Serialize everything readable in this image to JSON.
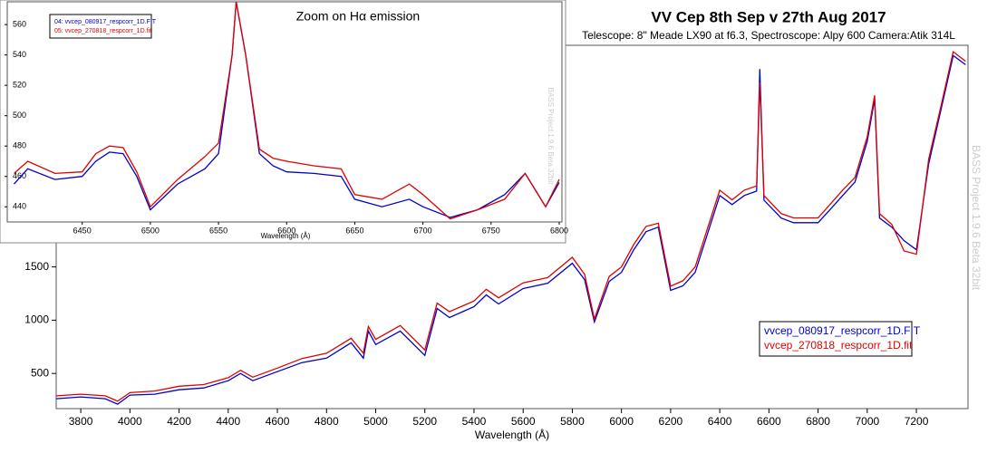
{
  "chart_data": [
    {
      "type": "line",
      "title": "VV Cep 8th Sep v 27th Aug 2017",
      "subtitle": "Telescope: 8\" Meade LX90 at f6.3, Spectroscope: Alpy 600 Camera:Atik 314L",
      "x_label": "Wavelength (Å)",
      "annotation": "BASS Project 1.9.6 Beta 32bit",
      "legend": "bottom-right",
      "x": [
        3700,
        3800,
        3900,
        3950,
        4000,
        4100,
        4200,
        4300,
        4400,
        4450,
        4500,
        4600,
        4700,
        4800,
        4900,
        4950,
        4970,
        5000,
        5100,
        5200,
        5250,
        5300,
        5400,
        5450,
        5500,
        5600,
        5700,
        5800,
        5850,
        5890,
        5950,
        6000,
        6050,
        6100,
        6150,
        6200,
        6250,
        6300,
        6400,
        6450,
        6500,
        6550,
        6563,
        6580,
        6650,
        6700,
        6800,
        6850,
        6900,
        6950,
        7000,
        7030,
        7050,
        7100,
        7150,
        7200,
        7250,
        7300,
        7350,
        7400
      ],
      "series": [
        {
          "name": "vvcep_080917_respcorr_1D.FIT",
          "color": "#0000cc",
          "values": [
            263,
            280,
            263,
            212,
            297,
            305,
            347,
            364,
            432,
            500,
            432,
            517,
            602,
            644,
            788,
            644,
            898,
            771,
            898,
            669,
            1110,
            1025,
            1127,
            1237,
            1152,
            1297,
            1347,
            1534,
            1381,
            983,
            1364,
            1449,
            1661,
            1831,
            1873,
            1280,
            1322,
            1449,
            2170,
            2085,
            2170,
            2212,
            3356,
            2127,
            1958,
            1915,
            1915,
            2042,
            2170,
            2297,
            2678,
            3076,
            1958,
            1873,
            1746,
            1661,
            2466,
            2975,
            3483,
            3398
          ]
        },
        {
          "name": "vvcep_270818_respcorr_1D.fit",
          "color": "#e00000",
          "values": [
            290,
            305,
            290,
            240,
            320,
            335,
            380,
            395,
            460,
            530,
            465,
            550,
            640,
            690,
            830,
            690,
            940,
            820,
            950,
            720,
            1160,
            1080,
            1180,
            1290,
            1210,
            1350,
            1400,
            1590,
            1430,
            1010,
            1410,
            1500,
            1710,
            1880,
            1910,
            1320,
            1370,
            1500,
            2220,
            2130,
            2220,
            2260,
            3229,
            2170,
            2000,
            1960,
            1960,
            2090,
            2220,
            2340,
            2720,
            3110,
            2000,
            1900,
            1650,
            1619,
            2510,
            3010,
            3520,
            3430
          ]
        }
      ],
      "xlim": [
        3700,
        7410
      ],
      "ylim": [
        170,
        3580
      ],
      "xticks": [
        3800,
        4000,
        4200,
        4400,
        4600,
        4800,
        5000,
        5200,
        5400,
        5600,
        5800,
        6000,
        6200,
        6400,
        6600,
        6800,
        7000,
        7200
      ],
      "yticks": [
        500,
        1000,
        1500
      ]
    },
    {
      "type": "line",
      "title": "Zoom on Hα emission",
      "x_label": "Wavelength (Å)",
      "annotation": "BASS Project 1.9.6 Beta 32bit",
      "legend": "top-left",
      "x": [
        6400,
        6410,
        6430,
        6450,
        6460,
        6470,
        6480,
        6490,
        6500,
        6520,
        6540,
        6550,
        6560,
        6563,
        6570,
        6580,
        6590,
        6600,
        6620,
        6640,
        6650,
        6670,
        6690,
        6700,
        6720,
        6740,
        6760,
        6775,
        6790,
        6800
      ],
      "series": [
        {
          "name": "04: vvcep_080917_respcorr_1D.FIT",
          "color": "#0000cc",
          "values": [
            455,
            465,
            458,
            460,
            470,
            476,
            475,
            460,
            438,
            455,
            465,
            475,
            540,
            575,
            540,
            475,
            467,
            463,
            462,
            460,
            445,
            440,
            445,
            440,
            433,
            438,
            448,
            462,
            440,
            456
          ]
        },
        {
          "name": "05: vvcep_270818_respcorr_1D.fit",
          "color": "#e00000",
          "values": [
            462,
            470,
            462,
            463,
            475,
            480,
            479,
            463,
            440,
            458,
            473,
            482,
            540,
            575,
            540,
            478,
            472,
            470,
            467,
            465,
            448,
            445,
            455,
            448,
            432,
            438,
            445,
            462,
            440,
            458
          ]
        }
      ],
      "xlim": [
        6395,
        6802
      ],
      "ylim": [
        430,
        575
      ],
      "xticks": [
        6450,
        6500,
        6550,
        6600,
        6650,
        6700,
        6750,
        6800
      ],
      "yticks": [
        440,
        460,
        480,
        500,
        520,
        540,
        560
      ]
    }
  ]
}
